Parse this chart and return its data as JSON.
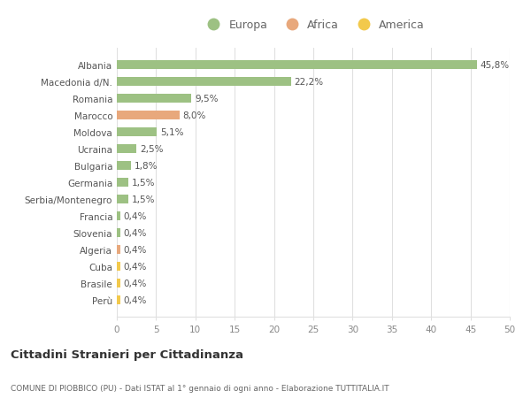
{
  "categories": [
    "Perù",
    "Brasile",
    "Cuba",
    "Algeria",
    "Slovenia",
    "Francia",
    "Serbia/Montenegro",
    "Germania",
    "Bulgaria",
    "Ucraina",
    "Moldova",
    "Marocco",
    "Romania",
    "Macedonia d/N.",
    "Albania"
  ],
  "values": [
    0.4,
    0.4,
    0.4,
    0.4,
    0.4,
    0.4,
    1.5,
    1.5,
    1.8,
    2.5,
    5.1,
    8.0,
    9.5,
    22.2,
    45.8
  ],
  "labels": [
    "0,4%",
    "0,4%",
    "0,4%",
    "0,4%",
    "0,4%",
    "0,4%",
    "1,5%",
    "1,5%",
    "1,8%",
    "2,5%",
    "5,1%",
    "8,0%",
    "9,5%",
    "22,2%",
    "45,8%"
  ],
  "colors": [
    "#f2c94c",
    "#f2c94c",
    "#f2c94c",
    "#e8a87c",
    "#9dc183",
    "#9dc183",
    "#9dc183",
    "#9dc183",
    "#9dc183",
    "#9dc183",
    "#9dc183",
    "#e8a87c",
    "#9dc183",
    "#9dc183",
    "#9dc183"
  ],
  "continent": [
    "America",
    "America",
    "America",
    "Africa",
    "Europa",
    "Europa",
    "Europa",
    "Europa",
    "Europa",
    "Europa",
    "Europa",
    "Africa",
    "Europa",
    "Europa",
    "Europa"
  ],
  "legend_labels": [
    "Europa",
    "Africa",
    "America"
  ],
  "legend_colors": [
    "#9dc183",
    "#e8a87c",
    "#f2c94c"
  ],
  "title": "Cittadini Stranieri per Cittadinanza",
  "subtitle": "COMUNE DI PIOBBICO (PU) - Dati ISTAT al 1° gennaio di ogni anno - Elaborazione TUTTITALIA.IT",
  "xlim": [
    0,
    50
  ],
  "xticks": [
    0,
    5,
    10,
    15,
    20,
    25,
    30,
    35,
    40,
    45,
    50
  ],
  "background_color": "#ffffff",
  "grid_color": "#e0e0e0",
  "bar_height": 0.55
}
